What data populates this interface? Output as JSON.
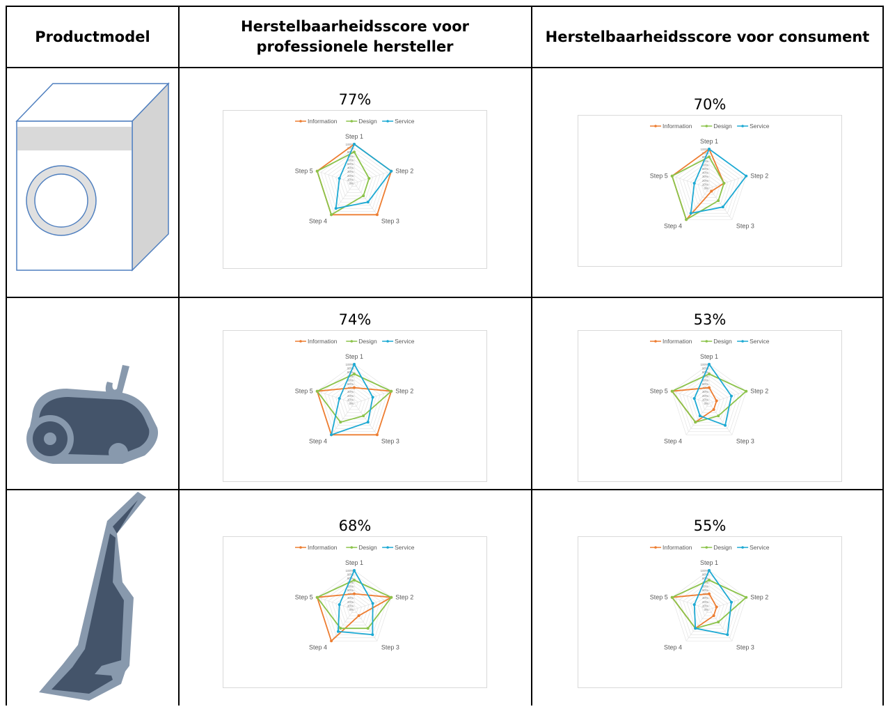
{
  "headers": {
    "product": "Productmodel",
    "professional": "Herstelbaarheidsscore voor professionele hersteller",
    "consumer": "Herstelbaarheidsscore voor consument"
  },
  "products": [
    {
      "icon": "washing-machine-icon"
    },
    {
      "icon": "canister-vacuum-icon"
    },
    {
      "icon": "stick-vacuum-icon"
    }
  ],
  "colors": {
    "information": "#ED7D31",
    "design": "#8BC34A",
    "service": "#1CA9D3"
  },
  "chart_data": [
    {
      "type": "radar",
      "title": "77%",
      "categories": [
        "Step 1",
        "Step 2",
        "Step 3",
        "Step 4",
        "Step 5"
      ],
      "rlim": [
        0,
        100
      ],
      "ticks": [
        "100%",
        "90%",
        "80%",
        "70%",
        "60%",
        "50%",
        "40%",
        "30%",
        "20%",
        "10%",
        "0%"
      ],
      "legend": "top",
      "series": [
        {
          "name": "Information",
          "values": [
            100,
            100,
            100,
            100,
            100
          ]
        },
        {
          "name": "Design",
          "values": [
            80,
            40,
            40,
            100,
            100
          ]
        },
        {
          "name": "Service",
          "values": [
            100,
            100,
            60,
            80,
            40
          ]
        }
      ]
    },
    {
      "type": "radar",
      "title": "70%",
      "categories": [
        "Step 1",
        "Step 2",
        "Step 3",
        "Step 4",
        "Step 5"
      ],
      "rlim": [
        0,
        100
      ],
      "ticks": [
        "100%",
        "90%",
        "80%",
        "70%",
        "60%",
        "50%",
        "40%",
        "30%",
        "20%",
        "10%",
        "0%"
      ],
      "legend": "top",
      "series": [
        {
          "name": "Information",
          "values": [
            100,
            40,
            10,
            100,
            100
          ]
        },
        {
          "name": "Design",
          "values": [
            80,
            40,
            40,
            100,
            100
          ]
        },
        {
          "name": "Service",
          "values": [
            100,
            100,
            60,
            80,
            40
          ]
        }
      ]
    },
    {
      "type": "radar",
      "title": "74%",
      "categories": [
        "Step 1",
        "Step 2",
        "Step 3",
        "Step 4",
        "Step 5"
      ],
      "rlim": [
        0,
        100
      ],
      "ticks": [
        "100%",
        "90%",
        "80%",
        "70%",
        "60%",
        "50%",
        "40%",
        "30%",
        "20%",
        "10%",
        "0%"
      ],
      "legend": "top",
      "series": [
        {
          "name": "Information",
          "values": [
            40,
            100,
            100,
            100,
            100
          ]
        },
        {
          "name": "Design",
          "values": [
            75,
            100,
            40,
            60,
            100
          ]
        },
        {
          "name": "Service",
          "values": [
            100,
            50,
            60,
            100,
            40
          ]
        }
      ]
    },
    {
      "type": "radar",
      "title": "53%",
      "categories": [
        "Step 1",
        "Step 2",
        "Step 3",
        "Step 4",
        "Step 5"
      ],
      "rlim": [
        0,
        100
      ],
      "ticks": [
        "100%",
        "90%",
        "80%",
        "70%",
        "60%",
        "50%",
        "40%",
        "30%",
        "20%",
        "10%",
        "0%"
      ],
      "legend": "top",
      "series": [
        {
          "name": "Information",
          "values": [
            40,
            20,
            20,
            60,
            100
          ]
        },
        {
          "name": "Design",
          "values": [
            75,
            100,
            40,
            60,
            100
          ]
        },
        {
          "name": "Service",
          "values": [
            100,
            60,
            70,
            40,
            40
          ]
        }
      ]
    },
    {
      "type": "radar",
      "title": "68%",
      "categories": [
        "Step 1",
        "Step 2",
        "Step 3",
        "Step 4",
        "Step 5"
      ],
      "rlim": [
        0,
        100
      ],
      "ticks": [
        "100%",
        "90%",
        "80%",
        "70%",
        "60%",
        "50%",
        "40%",
        "30%",
        "20%",
        "10%",
        "0%"
      ],
      "legend": "top",
      "series": [
        {
          "name": "Information",
          "values": [
            40,
            100,
            20,
            100,
            100
          ]
        },
        {
          "name": "Design",
          "values": [
            75,
            100,
            60,
            60,
            100
          ]
        },
        {
          "name": "Service",
          "values": [
            100,
            50,
            80,
            70,
            40
          ]
        }
      ]
    },
    {
      "type": "radar",
      "title": "55%",
      "categories": [
        "Step 1",
        "Step 2",
        "Step 3",
        "Step 4",
        "Step 5"
      ],
      "rlim": [
        0,
        100
      ],
      "ticks": [
        "100%",
        "90%",
        "80%",
        "70%",
        "60%",
        "50%",
        "40%",
        "30%",
        "20%",
        "10%",
        "0%"
      ],
      "legend": "top",
      "series": [
        {
          "name": "Information",
          "values": [
            40,
            20,
            20,
            60,
            100
          ]
        },
        {
          "name": "Design",
          "values": [
            75,
            100,
            40,
            60,
            100
          ]
        },
        {
          "name": "Service",
          "values": [
            100,
            60,
            80,
            60,
            40
          ]
        }
      ]
    }
  ]
}
